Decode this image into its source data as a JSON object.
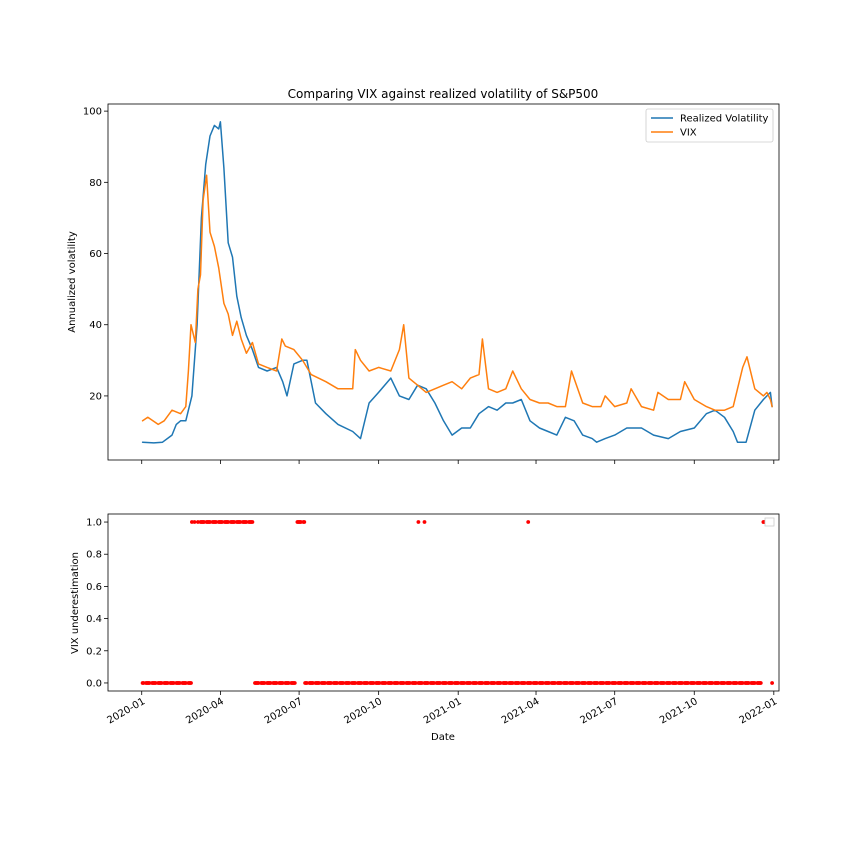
{
  "chart_data": [
    {
      "type": "line",
      "title": "Comparing VIX against realized volatility of S&P500",
      "xlabel": "",
      "ylabel": "Annualized volatility",
      "ylim": [
        2,
        102
      ],
      "yticks": [
        20,
        40,
        60,
        80,
        100
      ],
      "xlim": [
        "2019-11-23",
        "2022-01-07"
      ],
      "xticks": [
        "2020-01",
        "2020-04",
        "2020-07",
        "2020-10",
        "2021-01",
        "2021-04",
        "2021-07",
        "2021-10",
        "2022-01"
      ],
      "legend_position": "top-right",
      "grid": false,
      "series": [
        {
          "name": "Realized Volatility",
          "color": "#1f77b4",
          "x": [
            "2020-01-02",
            "2020-01-15",
            "2020-01-25",
            "2020-02-05",
            "2020-02-10",
            "2020-02-15",
            "2020-02-21",
            "2020-02-28",
            "2020-03-05",
            "2020-03-10",
            "2020-03-15",
            "2020-03-20",
            "2020-03-25",
            "2020-03-30",
            "2020-04-01",
            "2020-04-05",
            "2020-04-10",
            "2020-04-15",
            "2020-04-20",
            "2020-04-25",
            "2020-05-01",
            "2020-05-08",
            "2020-05-15",
            "2020-05-25",
            "2020-06-05",
            "2020-06-12",
            "2020-06-17",
            "2020-06-25",
            "2020-07-05",
            "2020-07-10",
            "2020-07-20",
            "2020-08-01",
            "2020-08-15",
            "2020-09-01",
            "2020-09-10",
            "2020-09-20",
            "2020-10-01",
            "2020-10-15",
            "2020-10-25",
            "2020-11-05",
            "2020-11-15",
            "2020-11-25",
            "2020-12-05",
            "2020-12-15",
            "2020-12-25",
            "2021-01-05",
            "2021-01-15",
            "2021-01-25",
            "2021-02-05",
            "2021-02-15",
            "2021-02-25",
            "2021-03-05",
            "2021-03-15",
            "2021-03-25",
            "2021-04-05",
            "2021-04-15",
            "2021-04-25",
            "2021-05-05",
            "2021-05-15",
            "2021-05-25",
            "2021-06-05",
            "2021-06-10",
            "2021-06-20",
            "2021-07-01",
            "2021-07-15",
            "2021-08-01",
            "2021-08-15",
            "2021-09-01",
            "2021-09-15",
            "2021-10-01",
            "2021-10-15",
            "2021-10-25",
            "2021-11-05",
            "2021-11-15",
            "2021-11-20",
            "2021-11-30",
            "2021-12-10",
            "2021-12-20",
            "2021-12-28",
            "2021-12-30"
          ],
          "values": [
            7,
            6.8,
            7,
            9,
            12,
            13,
            13,
            20,
            40,
            70,
            85,
            93,
            96,
            95,
            97,
            84,
            63,
            59,
            48,
            42,
            37,
            33,
            28,
            27,
            28,
            24,
            20,
            29,
            30,
            30,
            18,
            15,
            12,
            10,
            8,
            18,
            21,
            25,
            20,
            19,
            23,
            22,
            18,
            13,
            9,
            11,
            11,
            15,
            17,
            16,
            18,
            18,
            19,
            13,
            11,
            10,
            9,
            14,
            13,
            9,
            8,
            7,
            8,
            9,
            11,
            11,
            9,
            8,
            10,
            11,
            15,
            16,
            14,
            10,
            7,
            7,
            16,
            19,
            21,
            17
          ]
        },
        {
          "name": "VIX",
          "color": "#ff7f0e",
          "x": [
            "2020-01-02",
            "2020-01-08",
            "2020-01-20",
            "2020-01-27",
            "2020-02-05",
            "2020-02-15",
            "2020-02-21",
            "2020-02-24",
            "2020-02-27",
            "2020-03-03",
            "2020-03-06",
            "2020-03-09",
            "2020-03-12",
            "2020-03-16",
            "2020-03-20",
            "2020-03-25",
            "2020-03-30",
            "2020-04-05",
            "2020-04-10",
            "2020-04-15",
            "2020-04-20",
            "2020-04-25",
            "2020-05-01",
            "2020-05-08",
            "2020-05-15",
            "2020-05-25",
            "2020-06-05",
            "2020-06-11",
            "2020-06-15",
            "2020-06-25",
            "2020-07-05",
            "2020-07-15",
            "2020-08-01",
            "2020-08-15",
            "2020-09-01",
            "2020-09-04",
            "2020-09-10",
            "2020-09-20",
            "2020-10-01",
            "2020-10-15",
            "2020-10-25",
            "2020-10-30",
            "2020-11-05",
            "2020-11-15",
            "2020-11-25",
            "2020-12-05",
            "2020-12-15",
            "2020-12-25",
            "2021-01-05",
            "2021-01-15",
            "2021-01-25",
            "2021-01-29",
            "2021-02-05",
            "2021-02-15",
            "2021-02-25",
            "2021-03-05",
            "2021-03-15",
            "2021-03-25",
            "2021-04-05",
            "2021-04-15",
            "2021-04-25",
            "2021-05-05",
            "2021-05-12",
            "2021-05-25",
            "2021-06-05",
            "2021-06-15",
            "2021-06-20",
            "2021-07-01",
            "2021-07-15",
            "2021-07-20",
            "2021-08-01",
            "2021-08-15",
            "2021-08-20",
            "2021-09-01",
            "2021-09-15",
            "2021-09-20",
            "2021-10-01",
            "2021-10-15",
            "2021-10-25",
            "2021-11-05",
            "2021-11-15",
            "2021-11-26",
            "2021-12-01",
            "2021-12-10",
            "2021-12-20",
            "2021-12-24",
            "2021-12-28",
            "2021-12-30"
          ],
          "values": [
            13,
            14,
            12,
            13,
            16,
            15,
            17,
            27,
            40,
            35,
            50,
            54,
            75,
            82,
            66,
            62,
            56,
            46,
            43,
            37,
            41,
            36,
            32,
            35,
            29,
            28,
            27,
            36,
            34,
            33,
            30,
            26,
            24,
            22,
            22,
            33,
            30,
            27,
            28,
            27,
            33,
            40,
            25,
            23,
            21,
            22,
            23,
            24,
            22,
            25,
            26,
            36,
            22,
            21,
            22,
            27,
            22,
            19,
            18,
            18,
            17,
            17,
            27,
            18,
            17,
            17,
            20,
            17,
            18,
            22,
            17,
            16,
            21,
            19,
            19,
            24,
            19,
            17,
            16,
            16,
            17,
            28,
            31,
            22,
            20,
            21,
            19,
            17
          ]
        }
      ]
    },
    {
      "type": "scatter",
      "title": "",
      "xlabel": "Date",
      "ylabel": "VIX underestimation",
      "ylim": [
        -0.05,
        1.05
      ],
      "yticks": [
        "0.0",
        "0.2",
        "0.4",
        "0.6",
        "0.8",
        "1.0"
      ],
      "xlim": [
        "2019-11-23",
        "2022-01-07"
      ],
      "xticks": [
        "2020-01",
        "2020-04",
        "2020-07",
        "2020-10",
        "2021-01",
        "2021-04",
        "2021-07",
        "2021-10",
        "2022-01"
      ],
      "legend_position": "top-right",
      "marker_color": "#ff0000",
      "series": [
        {
          "ones_ranges": [
            [
              "2020-02-28",
              "2020-03-02"
            ],
            [
              "2020-03-06",
              "2020-05-08"
            ],
            [
              "2020-06-29",
              "2020-07-07"
            ],
            [
              "2020-11-16",
              "2020-11-16"
            ],
            [
              "2020-11-23",
              "2020-11-23"
            ],
            [
              "2021-03-23",
              "2021-03-23"
            ],
            [
              "2021-12-20",
              "2021-12-28"
            ]
          ],
          "zeros_ranges": [
            [
              "2020-01-02",
              "2020-02-27"
            ],
            [
              "2020-05-11",
              "2020-06-26"
            ],
            [
              "2020-07-08",
              "2021-12-17"
            ],
            [
              "2021-12-30",
              "2021-12-30"
            ]
          ]
        }
      ]
    }
  ]
}
